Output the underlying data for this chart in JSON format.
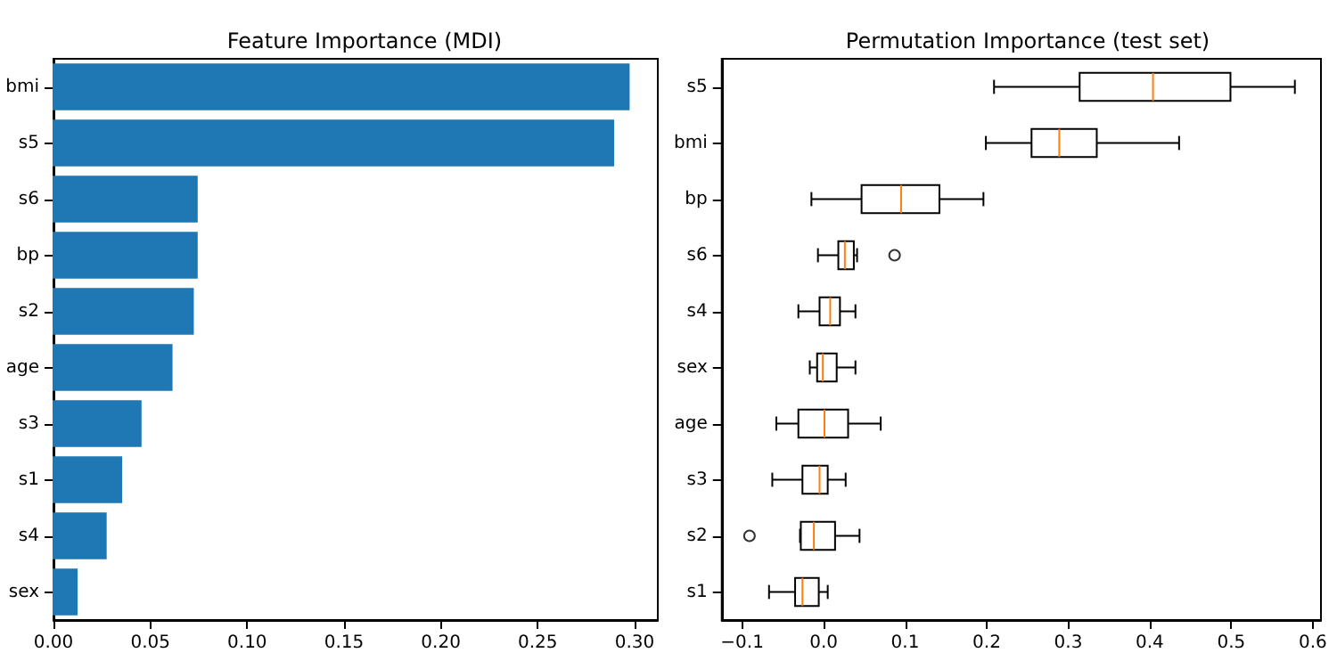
{
  "chart_data": [
    {
      "type": "bar",
      "orientation": "horizontal",
      "title": "Feature Importance (MDI)",
      "categories": [
        "bmi",
        "s5",
        "s6",
        "bp",
        "s2",
        "age",
        "s3",
        "s1",
        "s4",
        "sex"
      ],
      "series": [
        {
          "color": "#1f77b4",
          "values": [
            0.297,
            0.289,
            0.074,
            0.074,
            0.072,
            0.061,
            0.045,
            0.035,
            0.027,
            0.012
          ]
        }
      ],
      "xlim": [
        0,
        0.312
      ],
      "xticks": [
        {
          "value": 0,
          "label": "0.00"
        },
        {
          "value": 0.05,
          "label": "0.05"
        },
        {
          "value": 0.1,
          "label": "0.10"
        },
        {
          "value": 0.15,
          "label": "0.15"
        },
        {
          "value": 0.2,
          "label": "0.20"
        },
        {
          "value": 0.25,
          "label": "0.25"
        },
        {
          "value": 0.3,
          "label": "0.30"
        }
      ],
      "grid": false
    },
    {
      "type": "box",
      "orientation": "horizontal",
      "title": "Permutation Importance (test set)",
      "categories": [
        "s5",
        "bmi",
        "bp",
        "s6",
        "s4",
        "sex",
        "age",
        "s3",
        "s2",
        "s1"
      ],
      "series": [
        {
          "color": "#000000",
          "boxes": [
            {
              "low": 0.209,
              "q1": 0.314,
              "median": 0.404,
              "q3": 0.499,
              "high": 0.578
            },
            {
              "low": 0.199,
              "q1": 0.255,
              "median": 0.289,
              "q3": 0.335,
              "high": 0.436
            },
            {
              "low": -0.015,
              "q1": 0.0465,
              "median": 0.095,
              "q3": 0.142,
              "high": 0.196
            },
            {
              "low": -0.007,
              "q1": 0.018,
              "median": 0.026,
              "q3": 0.037,
              "high": 0.041,
              "outliers": [
                0.087
              ]
            },
            {
              "low": -0.031,
              "q1": -0.005,
              "median": 0.008,
              "q3": 0.02,
              "high": 0.039
            },
            {
              "low": -0.017,
              "q1": -0.008,
              "median": -0.001,
              "q3": 0.016,
              "high": 0.039
            },
            {
              "low": -0.058,
              "q1": -0.031,
              "median": 0.001,
              "q3": 0.03,
              "high": 0.07
            },
            {
              "low": -0.063,
              "q1": -0.026,
              "median": -0.005,
              "q3": 0.005,
              "high": 0.027
            },
            {
              "low": -0.029,
              "q1": -0.028,
              "median": -0.012,
              "q3": 0.014,
              "high": 0.044,
              "outliers": [
                -0.091
              ]
            },
            {
              "low": -0.067,
              "q1": -0.035,
              "median": -0.026,
              "q3": -0.006,
              "high": 0.005
            }
          ]
        }
      ],
      "xlim": [
        -0.125,
        0.61
      ],
      "xticks": [
        {
          "value": -0.1,
          "label": "−0.1"
        },
        {
          "value": 0,
          "label": "0.0"
        },
        {
          "value": 0.1,
          "label": "0.1"
        },
        {
          "value": 0.2,
          "label": "0.2"
        },
        {
          "value": 0.3,
          "label": "0.3"
        },
        {
          "value": 0.4,
          "label": "0.4"
        },
        {
          "value": 0.5,
          "label": "0.5"
        },
        {
          "value": 0.6,
          "label": "0.6"
        }
      ],
      "grid": false
    }
  ]
}
